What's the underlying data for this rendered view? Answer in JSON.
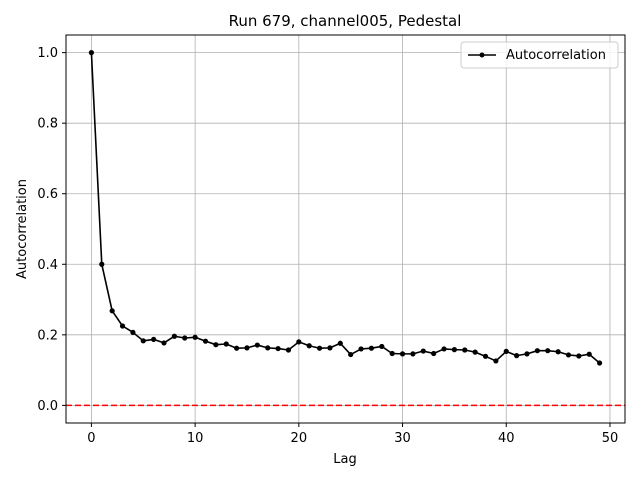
{
  "chart_data": {
    "type": "line",
    "title": "Run 679, channel005, Pedestal",
    "xlabel": "Lag",
    "ylabel": "Autocorrelation",
    "xlim": [
      -2.45,
      51.45
    ],
    "ylim": [
      -0.05,
      1.05
    ],
    "xticks": [
      0,
      10,
      20,
      30,
      40,
      50
    ],
    "yticks": [
      0.0,
      0.2,
      0.4,
      0.6,
      0.8,
      1.0
    ],
    "xtick_labels": [
      "0",
      "10",
      "20",
      "30",
      "40",
      "50"
    ],
    "ytick_labels": [
      "0.0",
      "0.2",
      "0.4",
      "0.6",
      "0.8",
      "1.0"
    ],
    "grid": true,
    "legend_position": "top-right",
    "series": [
      {
        "name": "Autocorrelation",
        "color": "#000000",
        "marker": "circle",
        "x": [
          0,
          1,
          2,
          3,
          4,
          5,
          6,
          7,
          8,
          9,
          10,
          11,
          12,
          13,
          14,
          15,
          16,
          17,
          18,
          19,
          20,
          21,
          22,
          23,
          24,
          25,
          26,
          27,
          28,
          29,
          30,
          31,
          32,
          33,
          34,
          35,
          36,
          37,
          38,
          39,
          40,
          41,
          42,
          43,
          44,
          45,
          46,
          47,
          48,
          49
        ],
        "y": [
          1.0,
          0.4,
          0.268,
          0.225,
          0.207,
          0.183,
          0.187,
          0.177,
          0.196,
          0.191,
          0.193,
          0.182,
          0.172,
          0.174,
          0.162,
          0.163,
          0.171,
          0.163,
          0.161,
          0.157,
          0.18,
          0.169,
          0.162,
          0.163,
          0.176,
          0.144,
          0.16,
          0.162,
          0.167,
          0.147,
          0.146,
          0.146,
          0.154,
          0.147,
          0.16,
          0.158,
          0.157,
          0.151,
          0.139,
          0.126,
          0.153,
          0.141,
          0.146,
          0.155,
          0.155,
          0.152,
          0.143,
          0.14,
          0.145,
          0.12
        ]
      }
    ],
    "reference_line": {
      "y": 0.0,
      "color": "#ff0000",
      "style": "dashed"
    }
  }
}
